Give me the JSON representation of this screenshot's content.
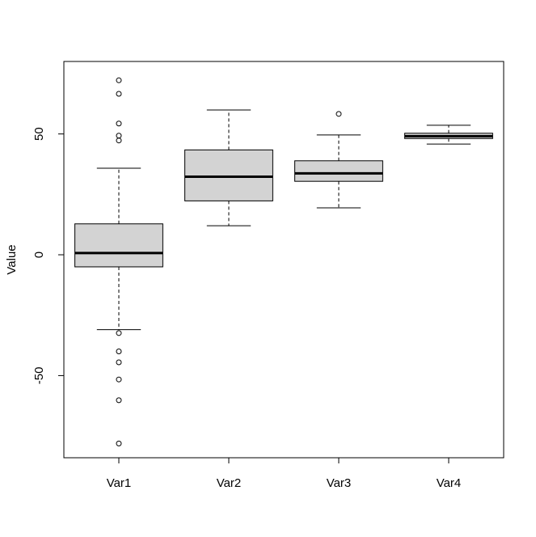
{
  "chart_data": {
    "type": "boxplot",
    "title": "",
    "xlabel": "",
    "ylabel": "Value",
    "ylim": [
      -84,
      80
    ],
    "yticks": [
      -50,
      0,
      50
    ],
    "grid": false,
    "categories": [
      "Var1",
      "Var2",
      "Var3",
      "Var4"
    ],
    "boxes": [
      {
        "name": "Var1",
        "whisker_low": -31,
        "q1": -5,
        "median": 0.7,
        "q3": 12.8,
        "whisker_high": 35.8,
        "outliers": [
          72.2,
          66.6,
          54.3,
          49.3,
          47.3,
          -32.4,
          -40,
          -44.5,
          -51.6,
          -60.2,
          -78.1
        ]
      },
      {
        "name": "Var2",
        "whisker_low": 12,
        "q1": 22.3,
        "median": 32.3,
        "q3": 43.4,
        "whisker_high": 59.9,
        "outliers": []
      },
      {
        "name": "Var3",
        "whisker_low": 19.4,
        "q1": 30.4,
        "median": 33.7,
        "q3": 38.9,
        "whisker_high": 49.6,
        "outliers": [
          58.3
        ]
      },
      {
        "name": "Var4",
        "whisker_low": 45.8,
        "q1": 48.1,
        "median": 49.1,
        "q3": 50.3,
        "whisker_high": 53.6,
        "outliers": []
      }
    ],
    "colors": {
      "box_fill": "#d3d3d3",
      "stroke": "#000000"
    }
  }
}
